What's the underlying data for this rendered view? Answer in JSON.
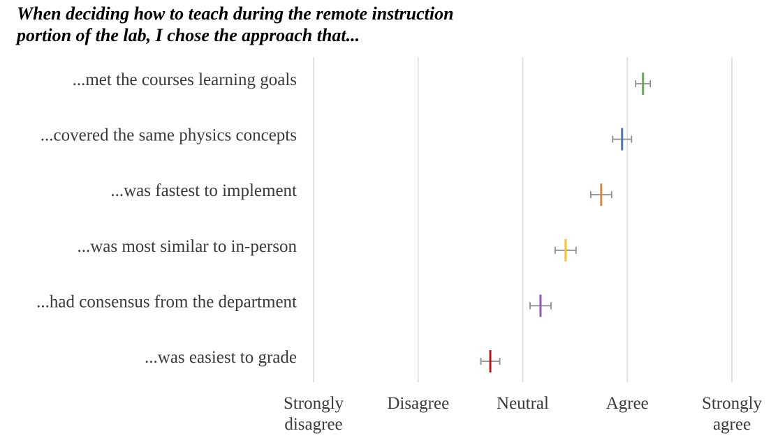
{
  "title_lines": [
    "When deciding how to teach during the remote instruction",
    "portion of the lab, I chose the approach that..."
  ],
  "chart_data": {
    "type": "scatter",
    "title": "When deciding how to teach during the remote instruction portion of the lab, I chose the approach that...",
    "categories": [
      "...met the courses learning goals",
      "...covered the same physics concepts",
      "...was fastest to implement",
      "...was most similar to in-person",
      "...had consensus from the department",
      "...was easiest to grade"
    ],
    "values": [
      4.15,
      3.95,
      3.75,
      3.41,
      3.17,
      2.69
    ],
    "errors": [
      0.07,
      0.09,
      0.1,
      0.1,
      0.1,
      0.09
    ],
    "colors": [
      "#6aa84f",
      "#4a74c4",
      "#e8853a",
      "#f1c232",
      "#8e5cb8",
      "#c0121e"
    ],
    "error_color": "#8c8c8c",
    "xlim": [
      1,
      5
    ],
    "x_ticks": [
      {
        "value": 1,
        "lines": [
          "Strongly",
          "disagree"
        ]
      },
      {
        "value": 2,
        "lines": [
          "Disagree"
        ]
      },
      {
        "value": 3,
        "lines": [
          "Neutral"
        ]
      },
      {
        "value": 4,
        "lines": [
          "Agree"
        ]
      },
      {
        "value": 5,
        "lines": [
          "Strongly",
          "agree"
        ]
      }
    ],
    "grid": true,
    "xlabel": "",
    "ylabel": ""
  }
}
